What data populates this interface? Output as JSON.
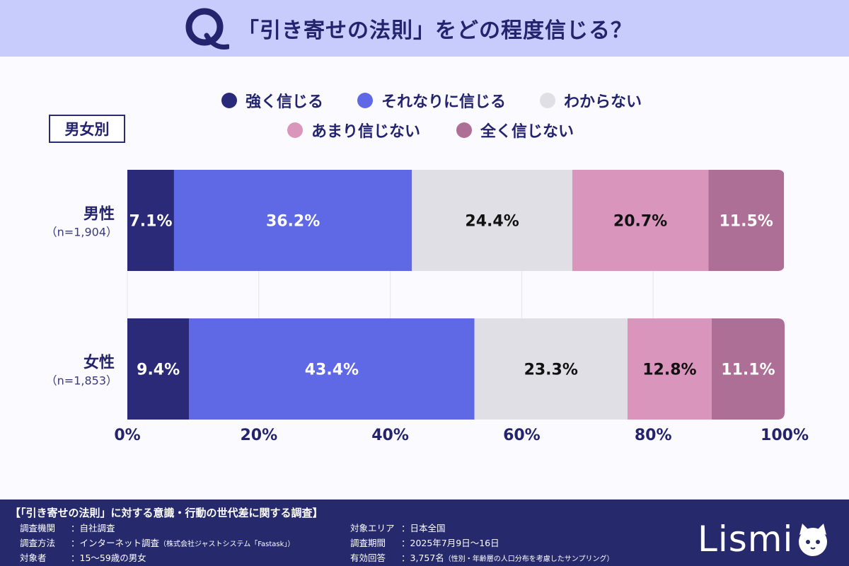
{
  "header": {
    "q_letter": "Q",
    "title": "「引き寄せの法則」をどの程度信じる？"
  },
  "group_label": "男女別",
  "colors": {
    "header_bg": "#c8ccfc",
    "accent": "#23236e",
    "footer_bg": "#262a6c"
  },
  "chart_data": {
    "type": "bar",
    "orientation": "horizontal",
    "stacked": true,
    "percent_stacked": true,
    "categories": [
      {
        "label": "男性",
        "sub": "（n=1,904）"
      },
      {
        "label": "女性",
        "sub": "（n=1,853）"
      }
    ],
    "series": [
      {
        "name": "強く信じる",
        "color": "#2b2a78",
        "values": [
          7.1,
          9.4
        ],
        "label_color": "#ffffff"
      },
      {
        "name": "それなりに信じる",
        "color": "#5f69e6",
        "values": [
          36.2,
          43.4
        ],
        "label_color": "#ffffff"
      },
      {
        "name": "わからない",
        "color": "#e0dfe5",
        "values": [
          24.4,
          23.3
        ],
        "label_color": "#111111"
      },
      {
        "name": "あまり信じない",
        "color": "#d995bc",
        "values": [
          20.7,
          12.8
        ],
        "label_color": "#111111"
      },
      {
        "name": "全く信じない",
        "color": "#ad6f96",
        "values": [
          11.5,
          11.1
        ],
        "label_color": "#ffffff"
      }
    ],
    "xticks": [
      "0%",
      "20%",
      "40%",
      "60%",
      "80%",
      "100%"
    ],
    "xlim": [
      0,
      100
    ],
    "value_suffix": "%",
    "grid": true,
    "legend_position": "top"
  },
  "footer": {
    "title": "【「引き寄せの法則」に対する意識・行動の世代差に関する調査】",
    "left": [
      {
        "label": "調査機関",
        "value": "：自社調査",
        "note": ""
      },
      {
        "label": "調査方法",
        "value": "：インターネット調査",
        "note": "（株式会社ジャストシステム「Fastask」）"
      },
      {
        "label": "対象者",
        "value": "：15〜59歳の男女",
        "note": ""
      }
    ],
    "right": [
      {
        "label": "対象エリア",
        "value": "：日本全国",
        "note": ""
      },
      {
        "label": "調査期間",
        "value": "：2025年7月9日〜16日",
        "note": ""
      },
      {
        "label": "有効回答",
        "value": "：3,757名",
        "note": "（性別・年齢層の人口分布を考慮したサンプリング）"
      }
    ],
    "logo_text": "Lismi"
  }
}
